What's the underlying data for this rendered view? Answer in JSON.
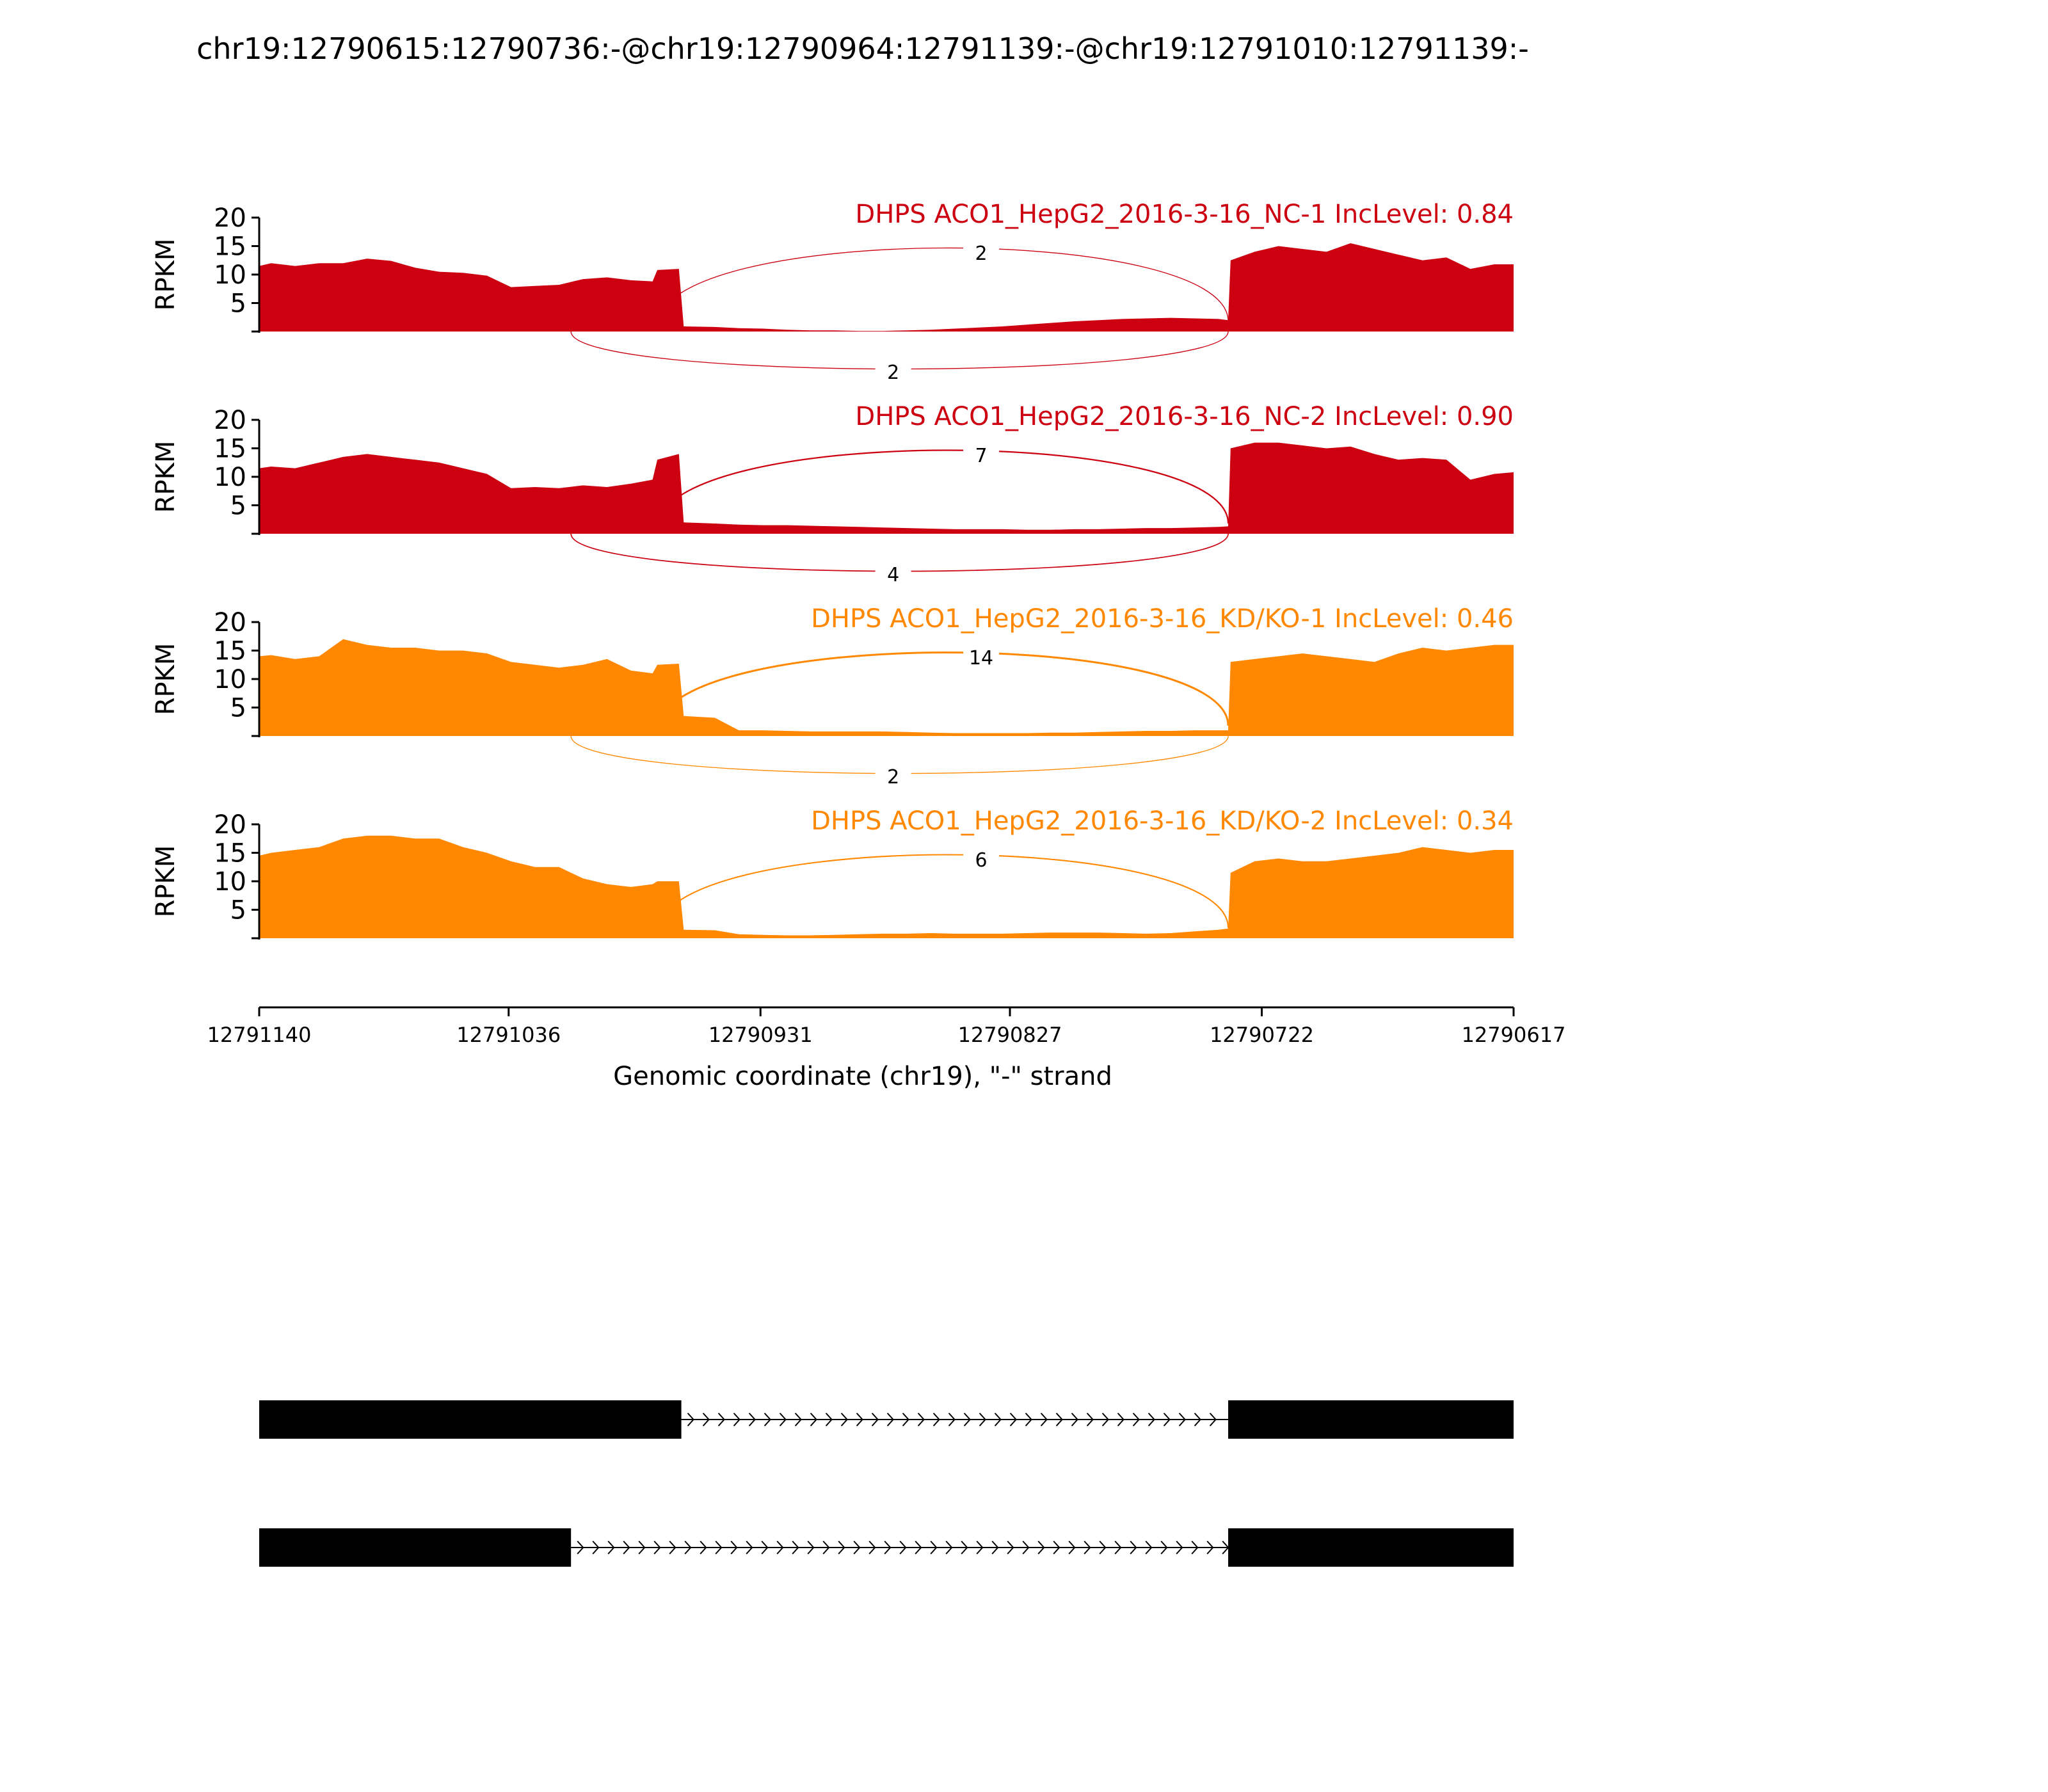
{
  "title": "chr19:12790615:12790736:-@chr19:12790964:12791139:-@chr19:12791010:12791139:-",
  "chart_data": {
    "type": "area",
    "ylabel": "RPKM",
    "ylim": [
      0,
      20
    ],
    "yticks": [
      5,
      10,
      15,
      20
    ],
    "xlabel": "Genomic coordinate (chr19), \"-\" strand",
    "xlim": [
      12791140,
      12790617
    ],
    "xticks": [
      12791140,
      12791036,
      12790931,
      12790827,
      12790722,
      12790617
    ],
    "exons": [
      {
        "name": "exon_skipped",
        "start": 12791139,
        "end": 12790964
      },
      {
        "name": "exon_upstream_part",
        "start": 12791139,
        "end": 12791010
      },
      {
        "name": "exon_downstream",
        "start": 12790736,
        "end": 12790617
      }
    ],
    "tracks": [
      {
        "label": "DHPS ACO1_HepG2_2016-3-16_NC-1 IncLevel: 0.84",
        "color": "#cc0011",
        "junctions": {
          "inclusion": 2,
          "skipping": 2
        },
        "coverage": {
          "x": [
            12791140,
            12791135,
            12791125,
            12791115,
            12791105,
            12791095,
            12791085,
            12791075,
            12791065,
            12791055,
            12791045,
            12791035,
            12791025,
            12791015,
            12791005,
            12790995,
            12790985,
            12790976,
            12790974,
            12790965,
            12790963,
            12790950,
            12790940,
            12790930,
            12790920,
            12790910,
            12790900,
            12790890,
            12790880,
            12790870,
            12790860,
            12790850,
            12790840,
            12790830,
            12790820,
            12790810,
            12790800,
            12790790,
            12790780,
            12790770,
            12790760,
            12790750,
            12790740,
            12790736,
            12790735,
            12790725,
            12790715,
            12790705,
            12790695,
            12790685,
            12790675,
            12790665,
            12790655,
            12790645,
            12790635,
            12790625,
            12790617
          ],
          "y": [
            11.5,
            12,
            11.5,
            12,
            12,
            12.8,
            12.4,
            11.2,
            10.5,
            10.3,
            9.8,
            7.8,
            8,
            8.2,
            9.2,
            9.5,
            9.0,
            8.8,
            10.8,
            11.0,
            0.9,
            0.8,
            0.6,
            0.5,
            0.3,
            0.2,
            0.2,
            0.1,
            0.1,
            0.2,
            0.3,
            0.5,
            0.7,
            0.9,
            1.2,
            1.5,
            1.8,
            2.0,
            2.2,
            2.3,
            2.4,
            2.3,
            2.2,
            2.0,
            12.5,
            14,
            15,
            14.5,
            14,
            15.5,
            14.5,
            13.5,
            12.5,
            13,
            11,
            11.8,
            11.8
          ]
        }
      },
      {
        "label": "DHPS ACO1_HepG2_2016-3-16_NC-2 IncLevel: 0.90",
        "color": "#cc0011",
        "junctions": {
          "inclusion": 7,
          "skipping": 4
        },
        "coverage": {
          "x": [
            12791140,
            12791135,
            12791125,
            12791115,
            12791105,
            12791095,
            12791085,
            12791075,
            12791065,
            12791055,
            12791045,
            12791035,
            12791025,
            12791015,
            12791005,
            12790995,
            12790985,
            12790976,
            12790974,
            12790965,
            12790963,
            12790950,
            12790940,
            12790930,
            12790920,
            12790910,
            12790900,
            12790890,
            12790880,
            12790870,
            12790860,
            12790850,
            12790840,
            12790830,
            12790820,
            12790810,
            12790800,
            12790790,
            12790780,
            12790770,
            12790760,
            12790750,
            12790740,
            12790736,
            12790735,
            12790725,
            12790715,
            12790705,
            12790695,
            12790685,
            12790675,
            12790665,
            12790655,
            12790645,
            12790635,
            12790625,
            12790617
          ],
          "y": [
            11.5,
            11.8,
            11.5,
            12.5,
            13.5,
            14,
            13.5,
            13,
            12.5,
            11.5,
            10.5,
            8,
            8.2,
            8,
            8.5,
            8.2,
            8.8,
            9.5,
            13,
            14,
            2.0,
            1.8,
            1.6,
            1.5,
            1.5,
            1.4,
            1.3,
            1.2,
            1.1,
            1.0,
            0.9,
            0.8,
            0.8,
            0.8,
            0.7,
            0.7,
            0.8,
            0.8,
            0.9,
            1.0,
            1.0,
            1.1,
            1.2,
            1.3,
            15,
            16,
            16,
            15.5,
            15,
            15.3,
            14,
            13,
            13.3,
            13,
            9.5,
            10.5,
            10.8
          ]
        }
      },
      {
        "label": "DHPS ACO1_HepG2_2016-3-16_KD/KO-1 IncLevel: 0.46",
        "color": "#ff8800",
        "junctions": {
          "inclusion": 14,
          "skipping": 2
        },
        "coverage": {
          "x": [
            12791140,
            12791135,
            12791125,
            12791115,
            12791105,
            12791095,
            12791085,
            12791075,
            12791065,
            12791055,
            12791045,
            12791035,
            12791025,
            12791015,
            12791005,
            12790995,
            12790985,
            12790976,
            12790974,
            12790965,
            12790963,
            12790950,
            12790940,
            12790930,
            12790920,
            12790910,
            12790900,
            12790890,
            12790880,
            12790870,
            12790860,
            12790850,
            12790840,
            12790830,
            12790820,
            12790810,
            12790800,
            12790790,
            12790780,
            12790770,
            12790760,
            12790750,
            12790740,
            12790736,
            12790735,
            12790725,
            12790715,
            12790705,
            12790695,
            12790685,
            12790675,
            12790665,
            12790655,
            12790645,
            12790635,
            12790625,
            12790617
          ],
          "y": [
            14,
            14.2,
            13.5,
            14,
            17,
            16,
            15.5,
            15.5,
            15,
            15,
            14.5,
            13,
            12.5,
            12,
            12.5,
            13.5,
            11.5,
            11,
            12.5,
            12.7,
            3.5,
            3.2,
            1.0,
            1.0,
            0.9,
            0.8,
            0.8,
            0.8,
            0.8,
            0.7,
            0.6,
            0.5,
            0.5,
            0.5,
            0.5,
            0.6,
            0.6,
            0.7,
            0.8,
            0.9,
            0.9,
            1.0,
            1.0,
            1.0,
            13,
            13.5,
            14,
            14.5,
            14,
            13.5,
            13,
            14.5,
            15.5,
            15,
            15.5,
            16,
            16
          ]
        }
      },
      {
        "label": "DHPS ACO1_HepG2_2016-3-16_KD/KO-2 IncLevel: 0.34",
        "color": "#ff8800",
        "junctions": {
          "inclusion": 6
        },
        "coverage": {
          "x": [
            12791140,
            12791135,
            12791125,
            12791115,
            12791105,
            12791095,
            12791085,
            12791075,
            12791065,
            12791055,
            12791045,
            12791035,
            12791025,
            12791015,
            12791005,
            12790995,
            12790985,
            12790976,
            12790974,
            12790965,
            12790963,
            12790950,
            12790940,
            12790930,
            12790920,
            12790910,
            12790900,
            12790890,
            12790880,
            12790870,
            12790860,
            12790850,
            12790840,
            12790830,
            12790820,
            12790810,
            12790800,
            12790790,
            12790780,
            12790770,
            12790760,
            12790750,
            12790740,
            12790736,
            12790735,
            12790725,
            12790715,
            12790705,
            12790695,
            12790685,
            12790675,
            12790665,
            12790655,
            12790645,
            12790635,
            12790625,
            12790617
          ],
          "y": [
            14.5,
            15,
            15.5,
            16,
            17.5,
            18,
            18,
            17.5,
            17.5,
            16,
            15,
            13.5,
            12.5,
            12.5,
            10.5,
            9.5,
            9.0,
            9.5,
            10,
            10,
            1.5,
            1.4,
            0.7,
            0.6,
            0.5,
            0.5,
            0.6,
            0.7,
            0.8,
            0.8,
            0.9,
            0.8,
            0.8,
            0.8,
            0.9,
            1.0,
            1.0,
            1.0,
            0.9,
            0.8,
            0.9,
            1.2,
            1.5,
            1.7,
            11.5,
            13.5,
            14,
            13.5,
            13.5,
            14,
            14.5,
            15,
            16,
            15.5,
            15,
            15.5,
            15.5
          ]
        }
      }
    ],
    "isoforms": [
      {
        "exons": [
          [
            12791140,
            12790964
          ],
          [
            12790736,
            12790617
          ]
        ]
      },
      {
        "exons": [
          [
            12791140,
            12791010
          ],
          [
            12790736,
            12790617
          ]
        ]
      }
    ]
  }
}
